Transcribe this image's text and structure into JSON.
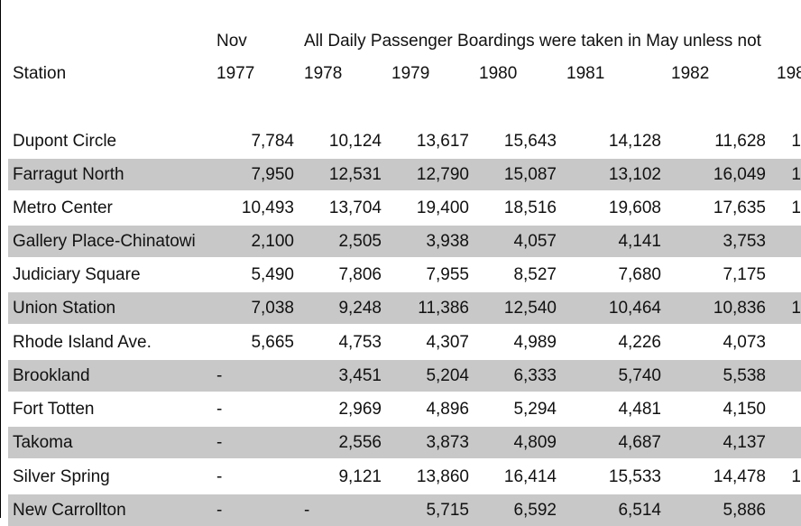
{
  "header": {
    "month": "Nov",
    "note": "All Daily Passenger Boardings were taken in May unless not",
    "station_label": "Station",
    "years": [
      "1977",
      "1978",
      "1979",
      "1980",
      "1981",
      "1982",
      "198"
    ]
  },
  "rows": [
    {
      "station": "Dupont Circle",
      "values": [
        "7,784",
        "10,124",
        "13,617",
        "15,643",
        "14,128",
        "11,628",
        "1"
      ]
    },
    {
      "station": "Farragut North",
      "values": [
        "7,950",
        "12,531",
        "12,790",
        "15,087",
        "13,102",
        "16,049",
        "1"
      ]
    },
    {
      "station": "Metro Center",
      "values": [
        "10,493",
        "13,704",
        "19,400",
        "18,516",
        "19,608",
        "17,635",
        "1"
      ]
    },
    {
      "station": "Gallery Place-Chinatowi",
      "values": [
        "2,100",
        "2,505",
        "3,938",
        "4,057",
        "4,141",
        "3,753",
        ""
      ]
    },
    {
      "station": "Judiciary Square",
      "values": [
        "5,490",
        "7,806",
        "7,955",
        "8,527",
        "7,680",
        "7,175",
        ""
      ]
    },
    {
      "station": "Union Station",
      "values": [
        "7,038",
        "9,248",
        "11,386",
        "12,540",
        "10,464",
        "10,836",
        "1"
      ]
    },
    {
      "station": "Rhode Island Ave.",
      "values": [
        "5,665",
        "4,753",
        "4,307",
        "4,989",
        "4,226",
        "4,073",
        ""
      ]
    },
    {
      "station": "Brookland",
      "values": [
        "-",
        "3,451",
        "5,204",
        "6,333",
        "5,740",
        "5,538",
        ""
      ]
    },
    {
      "station": "Fort Totten",
      "values": [
        "-",
        "2,969",
        "4,896",
        "5,294",
        "4,481",
        "4,150",
        ""
      ]
    },
    {
      "station": "Takoma",
      "values": [
        "-",
        "2,556",
        "3,873",
        "4,809",
        "4,687",
        "4,137",
        ""
      ]
    },
    {
      "station": "Silver Spring",
      "values": [
        "-",
        "9,121",
        "13,860",
        "16,414",
        "15,533",
        "14,478",
        "1"
      ]
    },
    {
      "station": "New Carrollton",
      "values": [
        "-",
        "-",
        "5,715",
        "6,592",
        "6,514",
        "5,886",
        ""
      ]
    }
  ]
}
